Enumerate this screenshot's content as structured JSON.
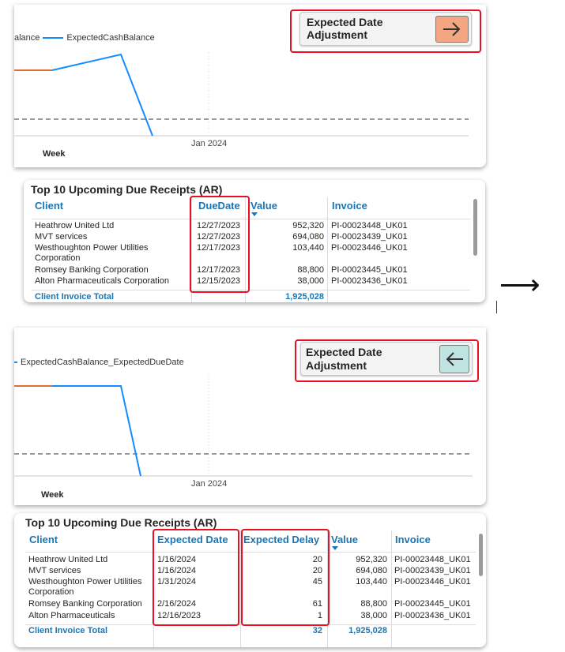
{
  "top": {
    "legend": {
      "item1": "alance",
      "item2": "ExpectedCashBalance"
    },
    "button": {
      "label_line1": "Expected Date",
      "label_line2": "Adjustment",
      "icon": "arrow-right-icon",
      "icon_bg": "#F4A582"
    },
    "axis": {
      "tick": "Jan 2024",
      "xlabel": "Week"
    },
    "table": {
      "title": "Top 10 Upcoming Due Receipts (AR)",
      "headers": {
        "client": "Client",
        "due_date": "DueDate",
        "value": "Value",
        "invoice": "Invoice"
      },
      "rows": [
        {
          "client": "Heathrow United Ltd",
          "date": "12/27/2023",
          "value": "952,320",
          "invoice": "PI-00023448_UK01"
        },
        {
          "client": "MVT services",
          "date": "12/27/2023",
          "value": "694,080",
          "invoice": "PI-00023439_UK01"
        },
        {
          "client": "Westhoughton Power Utilities",
          "client2": "Corporation",
          "date": "12/17/2023",
          "value": "103,440",
          "invoice": "PI-00023446_UK01"
        },
        {
          "client": "Romsey Banking Corporation",
          "date": "12/17/2023",
          "value": "88,800",
          "invoice": "PI-00023445_UK01"
        },
        {
          "client": "Alton Pharmaceuticals Corporation",
          "date": "12/15/2023",
          "value": "38,000",
          "invoice": "PI-00023436_UK01"
        }
      ],
      "total": {
        "label": "Client Invoice Total",
        "value": "1,925,028"
      }
    }
  },
  "transition_arrow": "⟶",
  "bottom": {
    "legend": {
      "item1": "ExpectedCashBalance_ExpectedDueDate"
    },
    "button": {
      "label_line1": "Expected Date",
      "label_line2": "Adjustment",
      "icon": "arrow-left-icon",
      "icon_bg": "#BFE3E0"
    },
    "axis": {
      "tick": "Jan 2024",
      "xlabel": "Week"
    },
    "table": {
      "title": "Top 10 Upcoming Due Receipts (AR)",
      "headers": {
        "client": "Client",
        "expected_date": "Expected Date",
        "expected_delay": "Expected Delay",
        "value": "Value",
        "invoice": "Invoice"
      },
      "rows": [
        {
          "client": "Heathrow United Ltd",
          "date": "1/16/2024",
          "delay": "20",
          "value": "952,320",
          "invoice": "PI-00023448_UK01"
        },
        {
          "client": "MVT services",
          "date": "1/16/2024",
          "delay": "20",
          "value": "694,080",
          "invoice": "PI-00023439_UK01"
        },
        {
          "client": "Westhoughton Power Utilities",
          "client2": "Corporation",
          "date": "1/31/2024",
          "delay": "45",
          "value": "103,440",
          "invoice": "PI-00023446_UK01"
        },
        {
          "client": "Romsey Banking Corporation",
          "date": "2/16/2024",
          "delay": "61",
          "value": "88,800",
          "invoice": "PI-00023445_UK01"
        },
        {
          "client": "Alton Pharmaceuticals",
          "date": "12/16/2023",
          "delay": "1",
          "value": "38,000",
          "invoice": "PI-00023436_UK01"
        }
      ],
      "total": {
        "label": "Client Invoice Total",
        "delay": "32",
        "value": "1,925,028"
      }
    }
  },
  "colors": {
    "orange_line": "#E66C37",
    "blue_line": "#118DFF",
    "header_blue": "#1A75B3",
    "highlight_red": "#E81123"
  }
}
